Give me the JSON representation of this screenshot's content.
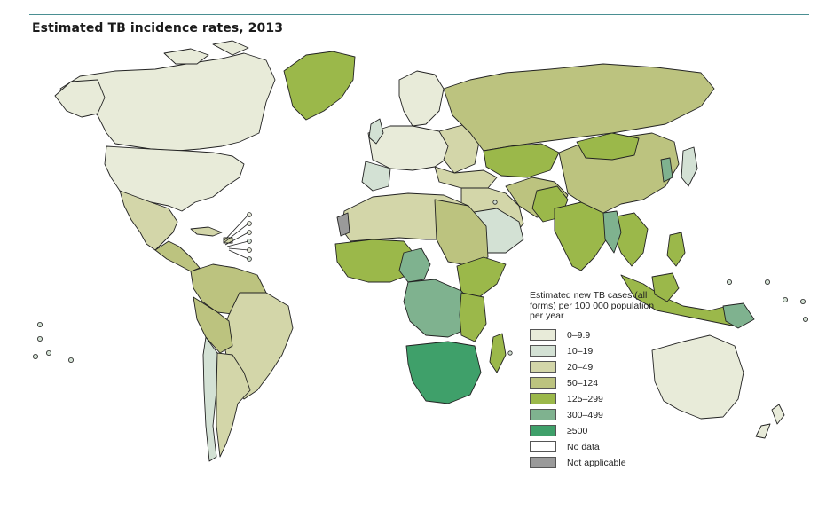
{
  "title": "Estimated TB incidence rates, 2013",
  "legend": {
    "title": "Estimated new TB cases (all forms) per 100 000 population per year",
    "items": [
      {
        "label": "0–9.9",
        "color": "#e8ebd9"
      },
      {
        "label": "10–19",
        "color": "#d3e1d4"
      },
      {
        "label": "20–49",
        "color": "#d3d6a9"
      },
      {
        "label": "50–124",
        "color": "#bcc37f"
      },
      {
        "label": "125–299",
        "color": "#9bb84a"
      },
      {
        "label": "300–499",
        "color": "#7fb28f"
      },
      {
        "label": "≥500",
        "color": "#3fa06a"
      },
      {
        "label": "No data",
        "color": "#ffffff"
      },
      {
        "label": "Not applicable",
        "color": "#9a9a9a"
      }
    ]
  },
  "colors": {
    "rule": "#4a8f92",
    "border": "#222222"
  }
}
